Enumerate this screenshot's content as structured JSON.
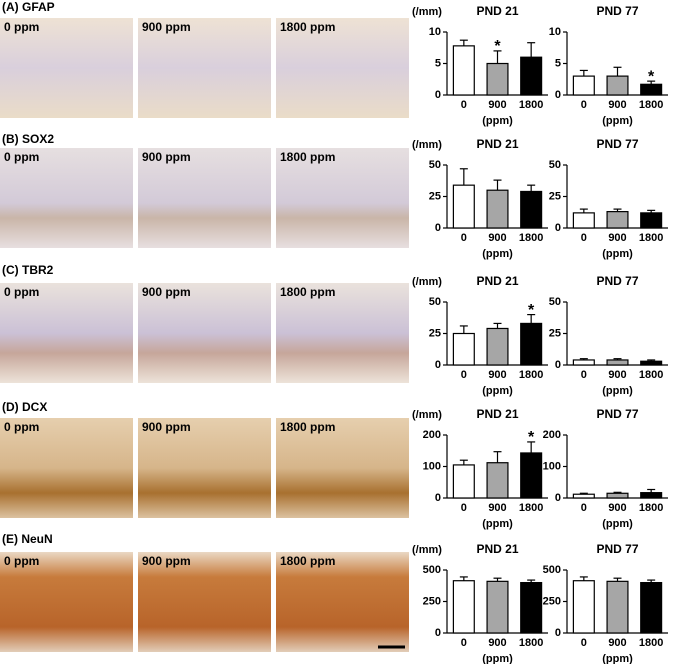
{
  "panels": [
    {
      "label": "(A) GFAP",
      "images": [
        "0 ppm",
        "900 ppm",
        "1800 ppm"
      ]
    },
    {
      "label": "(B) SOX2",
      "images": [
        "0 ppm",
        "900 ppm",
        "1800 ppm"
      ]
    },
    {
      "label": "(C) TBR2",
      "images": [
        "0 ppm",
        "900 ppm",
        "1800 ppm"
      ]
    },
    {
      "label": "(D) DCX",
      "images": [
        "0 ppm",
        "900 ppm",
        "1800 ppm"
      ]
    },
    {
      "label": "(E) NeuN",
      "images": [
        "0 ppm",
        "900 ppm",
        "1800 ppm"
      ]
    }
  ],
  "chart_data": [
    {
      "type": "bar",
      "title": "PND 21",
      "ylabel": "(/mm)",
      "xlabel": "(ppm)",
      "categories": [
        "0",
        "900",
        "1800"
      ],
      "values": [
        7.8,
        5.0,
        6.0
      ],
      "errors": [
        0.9,
        2.0,
        2.3
      ],
      "significance": [
        null,
        "*",
        null
      ],
      "colors": [
        "#ffffff",
        "#a6a6a6",
        "#000000"
      ],
      "ylim": [
        0,
        10
      ],
      "yticks": [
        0,
        5,
        10
      ]
    },
    {
      "type": "bar",
      "title": "PND 77",
      "xlabel": "(ppm)",
      "categories": [
        "0",
        "900",
        "1800"
      ],
      "values": [
        3.0,
        3.0,
        1.7
      ],
      "errors": [
        0.9,
        1.4,
        0.5
      ],
      "significance": [
        null,
        null,
        "*"
      ],
      "colors": [
        "#ffffff",
        "#a6a6a6",
        "#000000"
      ],
      "ylim": [
        0,
        10
      ],
      "yticks": [
        0,
        5,
        10
      ]
    },
    {
      "type": "bar",
      "title": "PND 21",
      "ylabel": "(/mm)",
      "xlabel": "(ppm)",
      "categories": [
        "0",
        "900",
        "1800"
      ],
      "values": [
        34,
        30,
        29
      ],
      "errors": [
        13,
        8,
        5
      ],
      "significance": [
        null,
        null,
        null
      ],
      "colors": [
        "#ffffff",
        "#a6a6a6",
        "#000000"
      ],
      "ylim": [
        0,
        50
      ],
      "yticks": [
        0,
        25,
        50
      ]
    },
    {
      "type": "bar",
      "title": "PND 77",
      "xlabel": "(ppm)",
      "categories": [
        "0",
        "900",
        "1800"
      ],
      "values": [
        12,
        13,
        12
      ],
      "errors": [
        3,
        2,
        2
      ],
      "significance": [
        null,
        null,
        null
      ],
      "colors": [
        "#ffffff",
        "#a6a6a6",
        "#000000"
      ],
      "ylim": [
        0,
        50
      ],
      "yticks": [
        0,
        25,
        50
      ]
    },
    {
      "type": "bar",
      "title": "PND 21",
      "ylabel": "(/mm)",
      "xlabel": "(ppm)",
      "categories": [
        "0",
        "900",
        "1800"
      ],
      "values": [
        25,
        29,
        33
      ],
      "errors": [
        6,
        4,
        7
      ],
      "significance": [
        null,
        null,
        "*"
      ],
      "colors": [
        "#ffffff",
        "#a6a6a6",
        "#000000"
      ],
      "ylim": [
        0,
        50
      ],
      "yticks": [
        0,
        25,
        50
      ]
    },
    {
      "type": "bar",
      "title": "PND 77",
      "xlabel": "(ppm)",
      "categories": [
        "0",
        "900",
        "1800"
      ],
      "values": [
        4,
        4,
        3
      ],
      "errors": [
        1,
        1,
        1
      ],
      "significance": [
        null,
        null,
        null
      ],
      "colors": [
        "#ffffff",
        "#a6a6a6",
        "#000000"
      ],
      "ylim": [
        0,
        50
      ],
      "yticks": [
        0,
        25,
        50
      ]
    },
    {
      "type": "bar",
      "title": "PND 21",
      "ylabel": "(/mm)",
      "xlabel": "(ppm)",
      "categories": [
        "0",
        "900",
        "1800"
      ],
      "values": [
        105,
        112,
        143
      ],
      "errors": [
        15,
        35,
        35
      ],
      "significance": [
        null,
        null,
        "*"
      ],
      "colors": [
        "#ffffff",
        "#a6a6a6",
        "#000000"
      ],
      "ylim": [
        0,
        200
      ],
      "yticks": [
        0,
        100,
        200
      ]
    },
    {
      "type": "bar",
      "title": "PND 77",
      "xlabel": "(ppm)",
      "categories": [
        "0",
        "900",
        "1800"
      ],
      "values": [
        12,
        15,
        17
      ],
      "errors": [
        3,
        3,
        10
      ],
      "significance": [
        null,
        null,
        null
      ],
      "colors": [
        "#ffffff",
        "#a6a6a6",
        "#000000"
      ],
      "ylim": [
        0,
        200
      ],
      "yticks": [
        0,
        100,
        200
      ]
    },
    {
      "type": "bar",
      "title": "PND 21",
      "ylabel": "(/mm)",
      "xlabel": "(ppm)",
      "categories": [
        "0",
        "900",
        "1800"
      ],
      "values": [
        415,
        410,
        400
      ],
      "errors": [
        30,
        25,
        20
      ],
      "significance": [
        null,
        null,
        null
      ],
      "colors": [
        "#ffffff",
        "#a6a6a6",
        "#000000"
      ],
      "ylim": [
        0,
        500
      ],
      "yticks": [
        0,
        250,
        500
      ]
    },
    {
      "type": "bar",
      "title": "PND 77",
      "xlabel": "(ppm)",
      "categories": [
        "0",
        "900",
        "1800"
      ],
      "values": [
        415,
        410,
        400
      ],
      "errors": [
        30,
        25,
        20
      ],
      "significance": [
        null,
        null,
        null
      ],
      "colors": [
        "#ffffff",
        "#a6a6a6",
        "#000000"
      ],
      "ylim": [
        0,
        500
      ],
      "yticks": [
        0,
        250,
        500
      ]
    }
  ]
}
